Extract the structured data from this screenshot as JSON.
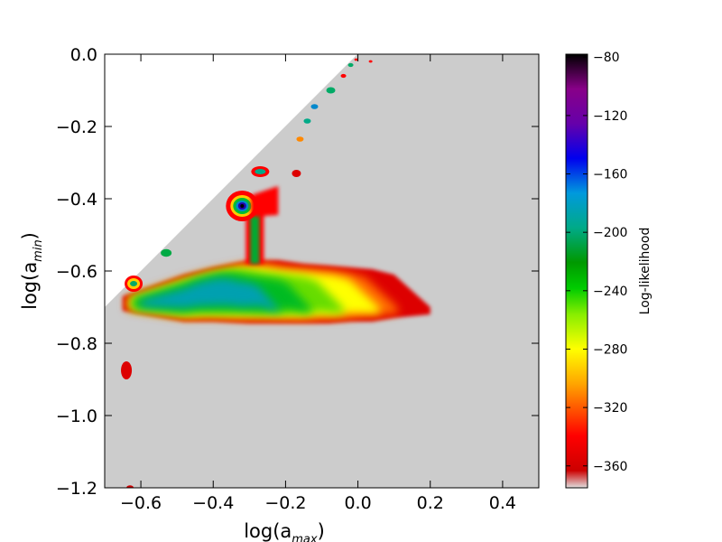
{
  "chart_data": {
    "type": "heatmap",
    "xlabel_main": "log(a",
    "xlabel_sub": "max",
    "xlabel_end": ")",
    "ylabel_main": "log(a",
    "ylabel_sub": "min",
    "ylabel_end": ")",
    "xlim": [
      -0.7,
      0.5
    ],
    "ylim": [
      -1.2,
      0.0
    ],
    "x_ticks": [
      -0.6,
      -0.4,
      -0.2,
      0.0,
      0.2,
      0.4
    ],
    "x_tick_labels": [
      "−0.6",
      "−0.4",
      "−0.2",
      "0.0",
      "0.2",
      "0.4"
    ],
    "y_ticks": [
      0.0,
      -0.2,
      -0.4,
      -0.6,
      -0.8,
      -1.0,
      -1.2
    ],
    "y_tick_labels": [
      "0.0",
      "−0.2",
      "−0.4",
      "−0.6",
      "−0.8",
      "−1.0",
      "−1.2"
    ],
    "background_color": "#cccccc",
    "colorbar": {
      "label": "Log-likelihood",
      "range": [
        -375,
        -78
      ],
      "ticks": [
        -80,
        -120,
        -160,
        -200,
        -240,
        -280,
        -320,
        -360
      ],
      "tick_labels": [
        "−80",
        "−120",
        "−160",
        "−200",
        "−240",
        "−280",
        "−320",
        "−360"
      ],
      "colormap": "nipy_spectral"
    },
    "regions": [
      {
        "x": [
          -0.65,
          -0.48,
          -0.4,
          -0.3,
          -0.22,
          -0.15,
          -0.08,
          -0.02,
          0.04,
          0.1,
          0.2
        ],
        "y_low": [
          -0.71,
          -0.74,
          -0.74,
          -0.745,
          -0.745,
          -0.745,
          -0.745,
          -0.74,
          -0.74,
          -0.73,
          -0.72
        ],
        "y_high": [
          -0.67,
          -0.61,
          -0.59,
          -0.57,
          -0.57,
          -0.58,
          -0.585,
          -0.59,
          -0.595,
          -0.61,
          -0.7
        ],
        "peak_value": -175
      },
      {
        "x": -0.32,
        "y": -0.42,
        "peak_value": -78
      },
      {
        "x": -0.62,
        "y": -0.635,
        "peak_value": -200
      },
      {
        "x": -0.64,
        "y": -0.875,
        "peak_value": -360
      },
      {
        "x": -0.27,
        "y": -0.325,
        "peak_value": -200
      },
      {
        "x": -0.17,
        "y": -0.33,
        "peak_value": -360
      }
    ]
  }
}
